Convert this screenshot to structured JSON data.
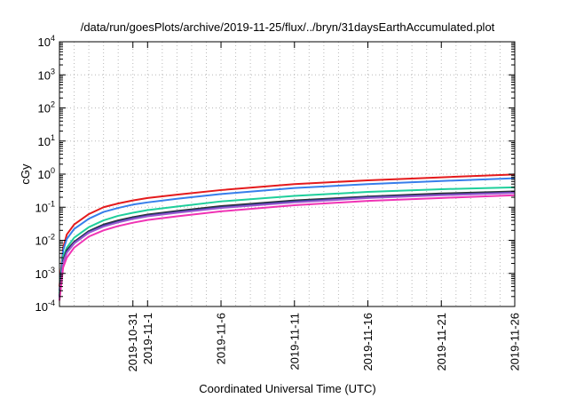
{
  "chart_data": {
    "type": "line",
    "title": "/data/run/goesPlots/archive/2019-11-25/flux/../bryn/31daysEarthAccumulated.plot",
    "xlabel": "Coordinated Universal Time (UTC)",
    "ylabel": "cGy",
    "y_scale": "log",
    "ylim": [
      0.0001,
      10000
    ],
    "xlim": [
      "2019-10-26",
      "2019-11-26"
    ],
    "grid": true,
    "y_ticks": [
      {
        "base": "10",
        "exp": "-4"
      },
      {
        "base": "10",
        "exp": "-3"
      },
      {
        "base": "10",
        "exp": "-2"
      },
      {
        "base": "10",
        "exp": "-1"
      },
      {
        "base": "10",
        "exp": "0"
      },
      {
        "base": "10",
        "exp": "1"
      },
      {
        "base": "10",
        "exp": "2"
      },
      {
        "base": "10",
        "exp": "3"
      },
      {
        "base": "10",
        "exp": "4"
      }
    ],
    "x_ticks": [
      {
        "date": "2019-10-31",
        "label": "2019-10-31"
      },
      {
        "date": "2019-11-01",
        "label": "2019-11-1"
      },
      {
        "date": "2019-11-06",
        "label": "2019-11-6"
      },
      {
        "date": "2019-11-11",
        "label": "2019-11-11"
      },
      {
        "date": "2019-11-16",
        "label": "2019-11-16"
      },
      {
        "date": "2019-11-21",
        "label": "2019-11-21"
      },
      {
        "date": "2019-11-26",
        "label": "2019-11-26"
      }
    ],
    "x": [
      "2019-10-26T00:00",
      "2019-10-26T06:00",
      "2019-10-26T12:00",
      "2019-10-27",
      "2019-10-28",
      "2019-10-29",
      "2019-10-30",
      "2019-10-31",
      "2019-11-01",
      "2019-11-03",
      "2019-11-06",
      "2019-11-11",
      "2019-11-16",
      "2019-11-21",
      "2019-11-26"
    ],
    "series": [
      {
        "color": "#e41a1c",
        "values": [
          0.0004,
          0.006,
          0.015,
          0.03,
          0.062,
          0.1,
          0.13,
          0.16,
          0.19,
          0.24,
          0.33,
          0.5,
          0.65,
          0.8,
          0.98
        ]
      },
      {
        "color": "#377eeb",
        "values": [
          0.0003,
          0.005,
          0.011,
          0.022,
          0.045,
          0.072,
          0.095,
          0.12,
          0.14,
          0.18,
          0.25,
          0.38,
          0.5,
          0.62,
          0.75
        ]
      },
      {
        "color": "#1fcf9b",
        "values": [
          0.00025,
          0.0032,
          0.006,
          0.012,
          0.025,
          0.04,
          0.055,
          0.068,
          0.082,
          0.105,
          0.15,
          0.22,
          0.29,
          0.35,
          0.4
        ]
      },
      {
        "color": "#303030",
        "values": [
          0.0002,
          0.0025,
          0.005,
          0.009,
          0.019,
          0.03,
          0.04,
          0.05,
          0.06,
          0.077,
          0.108,
          0.16,
          0.21,
          0.26,
          0.3
        ]
      },
      {
        "color": "#2a3a90",
        "values": [
          0.0002,
          0.0022,
          0.0045,
          0.0085,
          0.018,
          0.028,
          0.037,
          0.047,
          0.056,
          0.072,
          0.1,
          0.15,
          0.2,
          0.24,
          0.28
        ]
      },
      {
        "color": "#9b59d0",
        "values": [
          0.00018,
          0.0021,
          0.0042,
          0.008,
          0.017,
          0.026,
          0.035,
          0.044,
          0.053,
          0.068,
          0.095,
          0.14,
          0.19,
          0.23,
          0.27
        ]
      },
      {
        "color": "#f033b4",
        "values": [
          0.00015,
          0.0015,
          0.003,
          0.006,
          0.013,
          0.02,
          0.027,
          0.034,
          0.041,
          0.053,
          0.075,
          0.115,
          0.155,
          0.19,
          0.23
        ]
      }
    ]
  }
}
